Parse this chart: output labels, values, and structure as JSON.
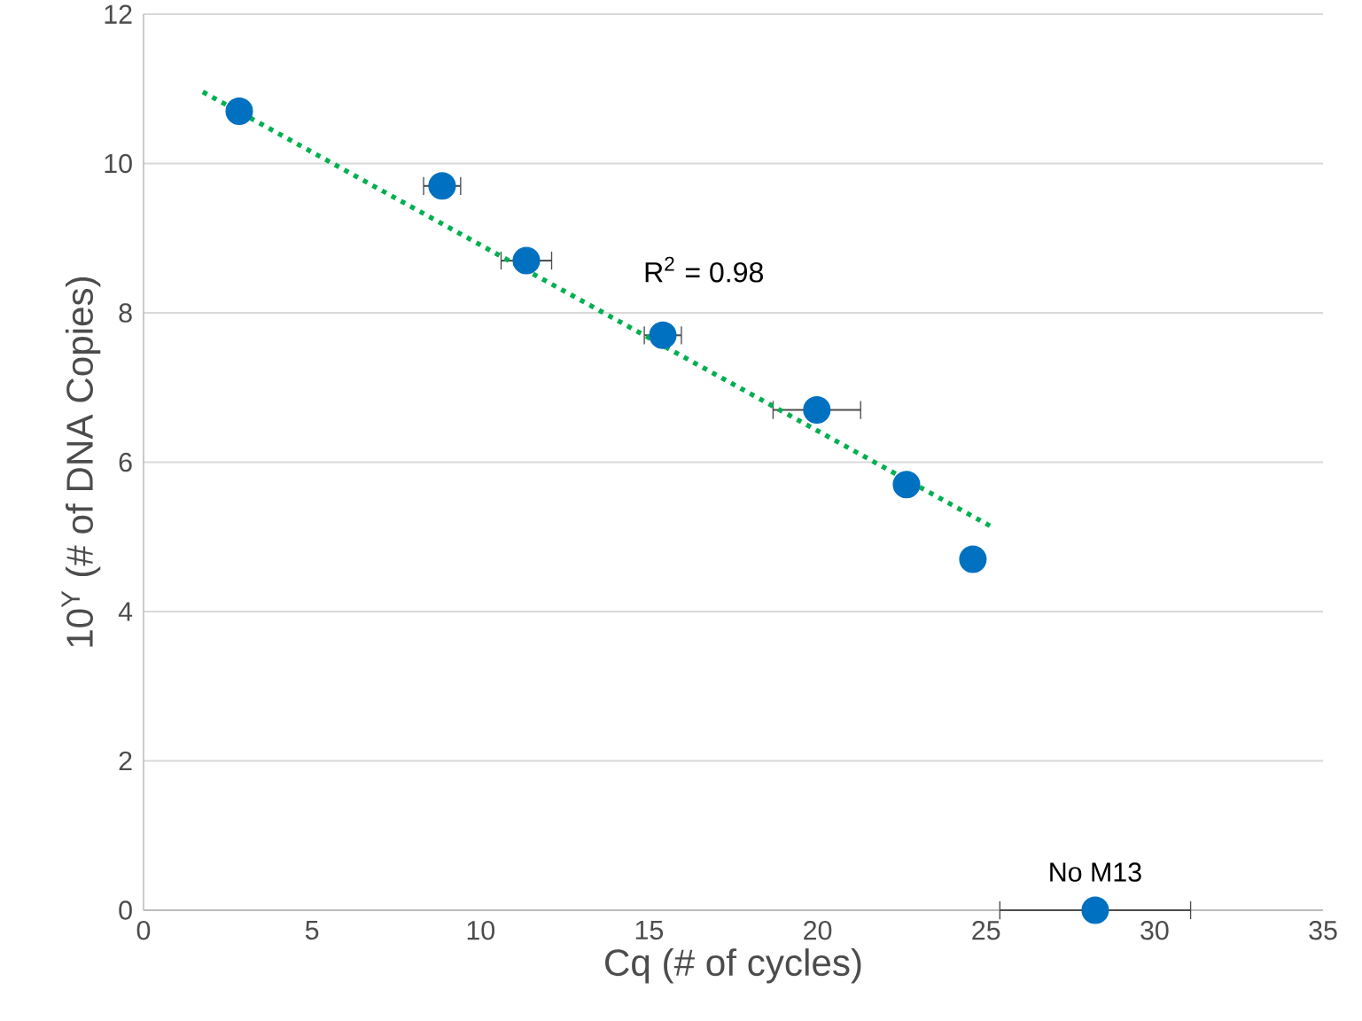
{
  "chart_data": {
    "type": "scatter",
    "xlabel": "Cq (# of cycles)",
    "ylabel": "10$^{Y}$ (# of DNA Copies)",
    "xlim": [
      0,
      35
    ],
    "xticks": [
      0,
      5,
      10,
      15,
      20,
      25,
      30,
      35
    ],
    "ylim": [
      0,
      12
    ],
    "yticks": [
      0,
      2,
      4,
      6,
      8,
      10,
      12
    ],
    "grid": "y",
    "marker": "circle",
    "series": [
      {
        "color": "#0070c0",
        "x": [
          2.84,
          8.86,
          11.36,
          15.41,
          19.98,
          22.64,
          24.61,
          28.24
        ],
        "values": [
          10.7,
          9.7,
          8.7,
          7.7,
          6.7,
          5.7,
          4.7,
          0
        ],
        "xerrors": [
          null,
          0.55,
          0.75,
          0.55,
          1.3,
          null,
          null,
          2.83
        ]
      },
      {
        "type": "line",
        "color": "#00b050",
        "line_style": "dotted",
        "marker": "none",
        "x": [
          1.76,
          25.19
        ],
        "values": [
          10.96,
          5.13
        ]
      }
    ],
    "annotations": [
      "R$^{2}$ = 0.98",
      {
        "text": "No M13",
        "x": 28.24,
        "y": 0
      }
    ]
  }
}
